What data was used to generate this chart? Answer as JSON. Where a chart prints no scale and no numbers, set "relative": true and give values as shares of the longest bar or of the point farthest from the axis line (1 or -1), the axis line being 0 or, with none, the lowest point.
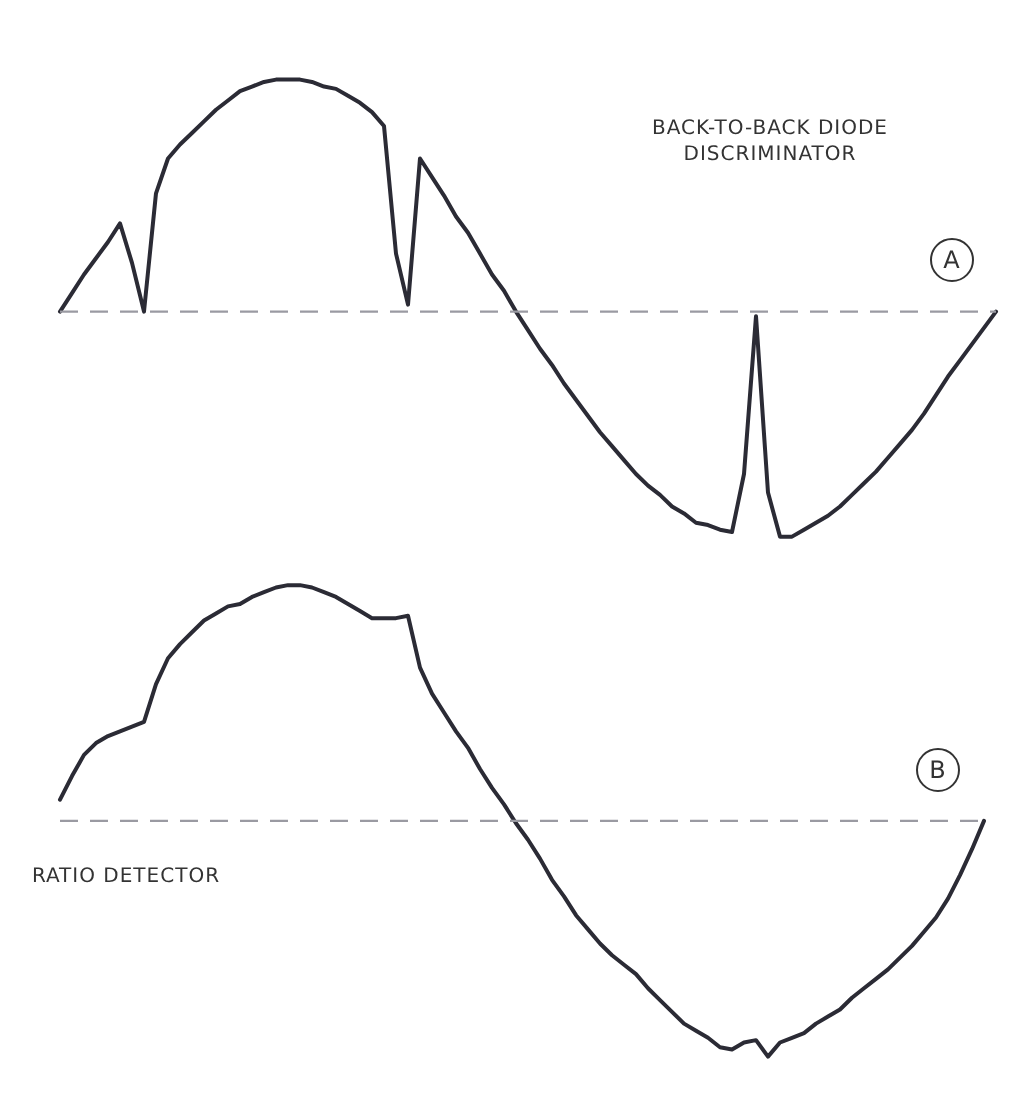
{
  "chart_data": [
    {
      "type": "line",
      "relative": true,
      "marker": "none",
      "legend": false,
      "color": "#2b2b35",
      "categories": [
        null,
        null,
        null,
        null,
        null,
        null,
        null,
        null,
        null,
        null,
        null,
        null,
        null,
        null,
        null,
        null,
        null,
        null,
        null,
        null,
        null,
        null,
        null,
        null,
        null,
        null,
        null,
        null,
        null,
        null,
        null,
        null,
        null,
        null,
        null,
        null,
        null,
        null,
        null,
        null,
        null,
        null,
        null,
        null,
        null,
        null,
        null,
        null,
        null,
        null,
        null,
        null,
        null,
        null,
        null,
        null,
        null,
        null,
        null,
        null,
        null,
        null,
        null,
        null,
        null,
        null,
        null,
        null,
        null,
        null,
        null,
        null,
        null,
        null,
        null,
        null,
        null,
        null,
        null
      ],
      "values": [
        0,
        0.08,
        0.16,
        0.23,
        0.3,
        0.38,
        0.21,
        0,
        0.51,
        0.66,
        0.72,
        0.77,
        0.82,
        0.87,
        0.91,
        0.95,
        0.97,
        0.99,
        1,
        1,
        1,
        0.99,
        0.97,
        0.96,
        0.93,
        0.9,
        0.86,
        0.8,
        0.25,
        0.03,
        0.66,
        0.58,
        0.5,
        0.41,
        0.34,
        0.25,
        0.16,
        0.09,
        0,
        -0.08,
        -0.16,
        -0.23,
        -0.31,
        -0.38,
        -0.45,
        -0.52,
        -0.58,
        -0.64,
        -0.7,
        -0.75,
        -0.79,
        -0.84,
        -0.87,
        -0.91,
        -0.92,
        -0.94,
        -0.95,
        -0.7,
        -0.02,
        -0.78,
        -0.97,
        -0.97,
        -0.94,
        -0.91,
        -0.88,
        -0.84,
        -0.79,
        -0.74,
        -0.69,
        -0.63,
        -0.57,
        -0.51,
        -0.44,
        -0.36,
        -0.28,
        -0.21,
        -0.14,
        -0.07,
        0
      ],
      "ref_lines": [
        {
          "axis": "y",
          "value": 0,
          "color": "#9a9aa2",
          "line_style": "dashed"
        }
      ],
      "annotations": [
        "BACK-TO-BACK DIODE DISCRIMINATOR",
        "A"
      ]
    },
    {
      "type": "line",
      "relative": true,
      "marker": "none",
      "legend": false,
      "color": "#2b2b35",
      "categories": [
        null,
        null,
        null,
        null,
        null,
        null,
        null,
        null,
        null,
        null,
        null,
        null,
        null,
        null,
        null,
        null,
        null,
        null,
        null,
        null,
        null,
        null,
        null,
        null,
        null,
        null,
        null,
        null,
        null,
        null,
        null,
        null,
        null,
        null,
        null,
        null,
        null,
        null,
        null,
        null,
        null,
        null,
        null,
        null,
        null,
        null,
        null,
        null,
        null,
        null,
        null,
        null,
        null,
        null,
        null,
        null,
        null,
        null,
        null,
        null,
        null,
        null,
        null,
        null,
        null,
        null,
        null,
        null,
        null,
        null,
        null,
        null,
        null,
        null,
        null,
        null,
        null,
        null
      ],
      "values": [
        0.09,
        0.19,
        0.28,
        0.33,
        0.36,
        0.38,
        0.4,
        0.42,
        0.58,
        0.69,
        0.75,
        0.8,
        0.85,
        0.88,
        0.91,
        0.92,
        0.95,
        0.97,
        0.99,
        1,
        1,
        0.99,
        0.97,
        0.95,
        0.92,
        0.89,
        0.86,
        0.86,
        0.86,
        0.87,
        0.65,
        0.54,
        0.46,
        0.38,
        0.31,
        0.22,
        0.14,
        0.07,
        -0.01,
        -0.08,
        -0.16,
        -0.25,
        -0.32,
        -0.4,
        -0.46,
        -0.52,
        -0.57,
        -0.61,
        -0.65,
        -0.71,
        -0.76,
        -0.81,
        -0.86,
        -0.89,
        -0.92,
        -0.96,
        -0.97,
        -0.94,
        -0.93,
        -1,
        -0.94,
        -0.92,
        -0.9,
        -0.86,
        -0.83,
        -0.8,
        -0.75,
        -0.71,
        -0.67,
        -0.63,
        -0.58,
        -0.53,
        -0.47,
        -0.41,
        -0.33,
        -0.23,
        -0.12,
        0
      ],
      "ref_lines": [
        {
          "axis": "y",
          "value": 0,
          "color": "#9a9aa2",
          "line_style": "dashed"
        }
      ],
      "annotations": [
        "B",
        "RATIO DETECTOR"
      ]
    }
  ]
}
